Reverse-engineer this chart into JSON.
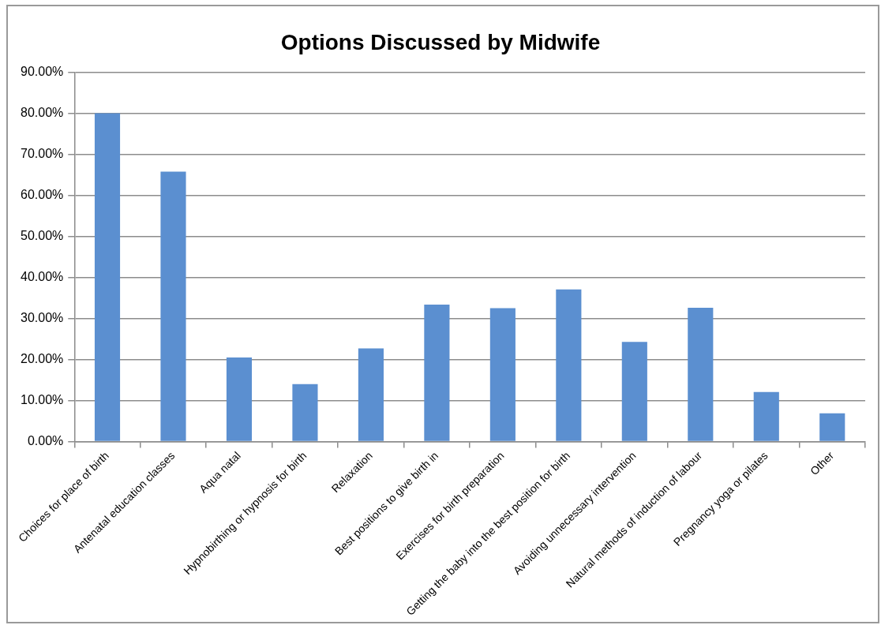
{
  "chart_data": {
    "type": "bar",
    "title": "Options Discussed by Midwife",
    "categories": [
      "Choices for place of birth",
      "Antenatal education classes",
      "Aqua natal",
      "Hypnobirthing or hypnosis for birth",
      "Relaxation",
      "Best positions to give birth in",
      "Exercises for birth preparation",
      "Getting the baby into the best position for birth",
      "Avoiding unnecessary intervention",
      "Natural methods of induction of labour",
      "Pregnancy yoga or pilates",
      "Other"
    ],
    "values": [
      80.0,
      65.8,
      20.5,
      14.0,
      22.7,
      33.4,
      32.5,
      37.1,
      24.3,
      32.6,
      12.1,
      6.9
    ],
    "color": "#5b8fd0",
    "ylim": [
      0,
      90
    ],
    "yticks": [
      {
        "value": 0,
        "label": "0.00%"
      },
      {
        "value": 10,
        "label": "10.00%"
      },
      {
        "value": 20,
        "label": "20.00%"
      },
      {
        "value": 30,
        "label": "30.00%"
      },
      {
        "value": 40,
        "label": "40.00%"
      },
      {
        "value": 50,
        "label": "50.00%"
      },
      {
        "value": 60,
        "label": "60.00%"
      },
      {
        "value": 70,
        "label": "70.00%"
      },
      {
        "value": 80,
        "label": "80.00%"
      },
      {
        "value": 90,
        "label": "90.00%"
      }
    ],
    "grid": "y"
  }
}
